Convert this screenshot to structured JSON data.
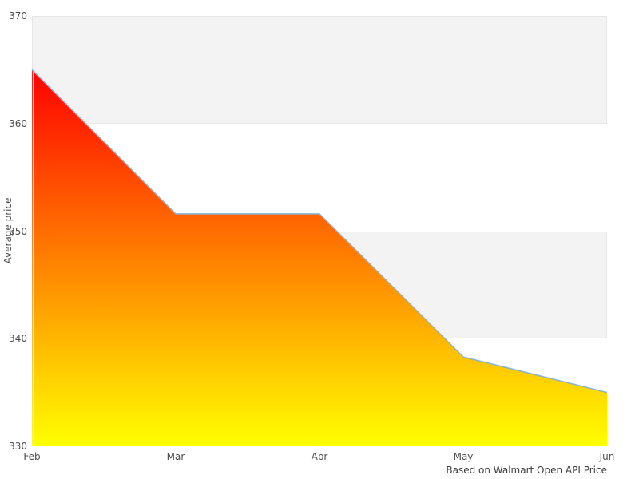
{
  "chart_data": {
    "type": "area",
    "title": "",
    "x": [
      "Feb",
      "Mar",
      "Apr",
      "May",
      "Jun"
    ],
    "series": [
      {
        "name": "Average price",
        "values": [
          365,
          351.6,
          351.6,
          338.3,
          335
        ]
      }
    ],
    "xlabel": "",
    "ylabel": "Average price",
    "ylim": [
      330,
      370
    ],
    "yticks": [
      370,
      360,
      350,
      340,
      330
    ],
    "grid": "alternating horizontal bands",
    "legend_position": "none",
    "caption": "Based on Walmart Open API Price",
    "colors": {
      "area_gradient_top": "#ff0000",
      "area_gradient_bottom": "#ffff00",
      "line": "#88b4d8",
      "band_fill": "#f3f3f3",
      "band_border": "#e7e7e7",
      "tick_text": "#4d4d4d",
      "caption_text": "#3d3d3d",
      "background": "#ffffff"
    }
  }
}
